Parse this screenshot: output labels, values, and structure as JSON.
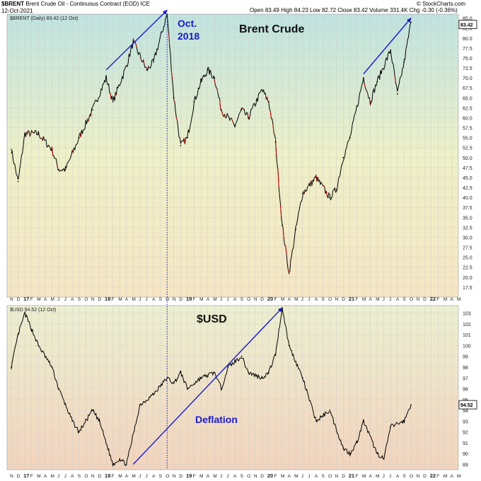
{
  "header": {
    "symbol": "$BRENT",
    "name": "Brent Crude Oil - Continuous Contract (EOD)",
    "exchange": "ICE",
    "date": "12-Oct-2021",
    "watermark": "© StockCharts.com",
    "quote": {
      "open_label": "Open",
      "open": "83.49",
      "high_label": "High",
      "high": "84.23",
      "low_label": "Low",
      "low": "82.72",
      "close_label": "Close",
      "close": "83.42",
      "volume_label": "Volume",
      "volume": "331.4K",
      "chg_label": "Chg",
      "chg": "-0.30 (-0.36%)"
    }
  },
  "colors": {
    "price_line": "#000000",
    "price_down": "#cc0000",
    "annotation": "#1a1acc",
    "bg_top": "#bfe3df",
    "bg_mid": "#eef0c8",
    "bg_bottom": "#f6e6c4",
    "usd_bg_top": "#ecefd0",
    "usd_bg_bottom": "#f2d4bd",
    "last_price_box": "#ffffff"
  },
  "chart_data": [
    {
      "type": "line",
      "legend": "$BRENT (Daily) 83.42 (12 Oct)",
      "title": "Brent Crude",
      "ylim": [
        15,
        86
      ],
      "y_ticks": [
        17.5,
        20.0,
        22.5,
        25.0,
        27.5,
        30.0,
        32.5,
        35.0,
        37.5,
        40.0,
        42.5,
        45.0,
        47.5,
        50.0,
        52.5,
        55.0,
        57.5,
        60.0,
        62.5,
        65.0,
        67.5,
        70.0,
        72.5,
        75.0,
        77.5,
        80.0,
        82.5,
        85.0
      ],
      "last_value": "83.42",
      "x": [
        "2016-11",
        "2016-12",
        "2017-01",
        "2017-03",
        "2017-05",
        "2017-06",
        "2017-07",
        "2017-09",
        "2017-11",
        "2018-01",
        "2018-02",
        "2018-04",
        "2018-05",
        "2018-07",
        "2018-08",
        "2018-10",
        "2018-11",
        "2018-12",
        "2019-01",
        "2019-02",
        "2019-03",
        "2019-04",
        "2019-05",
        "2019-06",
        "2019-08",
        "2019-09",
        "2019-10",
        "2019-12",
        "2020-01",
        "2020-02",
        "2020-03",
        "2020-04",
        "2020-05",
        "2020-06",
        "2020-08",
        "2020-10",
        "2020-11",
        "2020-12",
        "2021-01",
        "2021-03",
        "2021-04",
        "2021-05",
        "2021-07",
        "2021-08",
        "2021-09",
        "2021-10"
      ],
      "values": [
        52,
        44,
        56,
        56,
        52,
        47,
        47,
        55,
        62,
        70,
        64,
        73,
        79,
        72,
        74,
        86,
        65,
        53,
        55,
        64,
        69,
        72,
        70,
        62,
        58,
        62,
        60,
        67,
        64,
        54,
        33,
        21,
        32,
        41,
        45,
        40,
        42,
        50,
        55,
        70,
        64,
        69,
        77,
        66,
        74,
        84
      ],
      "annotations": [
        {
          "text": "Oct.",
          "x": "2018-10"
        },
        {
          "text": "2018",
          "x": "2018-10"
        }
      ],
      "arrows": [
        {
          "from": {
            "x": "2018-01",
            "y": 72
          },
          "to": {
            "x": "2018-10",
            "y": 87
          }
        },
        {
          "from": {
            "x": "2021-03",
            "y": 71
          },
          "to": {
            "x": "2021-10",
            "y": 85
          }
        }
      ]
    },
    {
      "type": "line",
      "legend": "$USD 94.52 (12 Oct)",
      "title": "$USD",
      "ylim": [
        88.5,
        103.7
      ],
      "y_ticks": [
        89,
        90,
        91,
        92,
        93,
        94,
        95,
        96,
        97,
        98,
        99,
        100,
        101,
        102,
        103
      ],
      "last_value": "94.52",
      "x": [
        "2016-11",
        "2016-12",
        "2017-01",
        "2017-02",
        "2017-03",
        "2017-05",
        "2017-06",
        "2017-08",
        "2017-09",
        "2017-11",
        "2017-12",
        "2018-02",
        "2018-03",
        "2018-04",
        "2018-06",
        "2018-08",
        "2018-10",
        "2018-11",
        "2018-12",
        "2019-01",
        "2019-03",
        "2019-05",
        "2019-06",
        "2019-07",
        "2019-09",
        "2019-10",
        "2019-12",
        "2020-01",
        "2020-02",
        "2020-03",
        "2020-04",
        "2020-06",
        "2020-08",
        "2020-10",
        "2020-12",
        "2021-01",
        "2021-02",
        "2021-03",
        "2021-05",
        "2021-06",
        "2021-07",
        "2021-09",
        "2021-10"
      ],
      "values": [
        98,
        101,
        103,
        101.5,
        100,
        98,
        96,
        93,
        92,
        94,
        93,
        89,
        89.5,
        89,
        94.5,
        95.5,
        97,
        96.5,
        97.5,
        96,
        97,
        97.5,
        96,
        98,
        99,
        97.5,
        97,
        97.5,
        99.2,
        103.5,
        100,
        97,
        93,
        94,
        90.5,
        90,
        91,
        93,
        90,
        89.5,
        92.5,
        93,
        94.5
      ],
      "annotations": [
        {
          "text": "Deflation",
          "x": "2019-02",
          "y": 93.2
        }
      ],
      "arrows": [
        {
          "from": {
            "x": "2018-05",
            "y": 89
          },
          "to": {
            "x": "2020-03",
            "y": 103.5
          }
        }
      ]
    }
  ],
  "x_axis": {
    "month_labels": [
      "N",
      "D",
      "17",
      "F",
      "M",
      "A",
      "M",
      "J",
      "J",
      "A",
      "S",
      "O",
      "N",
      "D",
      "18",
      "F",
      "M",
      "A",
      "M",
      "J",
      "J",
      "A",
      "S",
      "O",
      "N",
      "D",
      "19",
      "F",
      "M",
      "A",
      "M",
      "J",
      "J",
      "A",
      "S",
      "O",
      "N",
      "D",
      "20",
      "F",
      "M",
      "A",
      "M",
      "J",
      "J",
      "A",
      "S",
      "O",
      "N",
      "D",
      "21",
      "F",
      "M",
      "A",
      "M",
      "J",
      "J",
      "A",
      "S",
      "O",
      "N",
      "D",
      "22",
      "F",
      "M",
      "A",
      "M"
    ],
    "event_line": "2018-10"
  }
}
